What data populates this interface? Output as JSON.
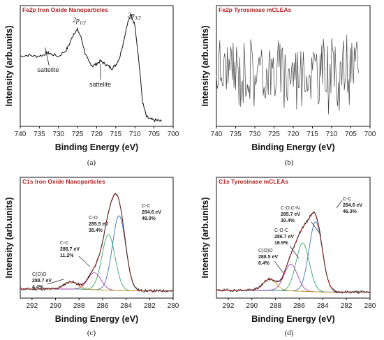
{
  "chart_data": [
    {
      "id": "a",
      "type": "line",
      "title": "Fe2p Iron Oxide Nanoparticles",
      "title_parts": [
        "Fe",
        "2p",
        " Iron Oxide Nanoparticles"
      ],
      "xlabel": "Binding Energy (eV)",
      "ylabel": "Intensity (arb.units)",
      "caption": "(a)",
      "xlim": [
        740,
        700
      ],
      "x_reversed": true,
      "x_ticks": [
        740,
        735,
        730,
        725,
        720,
        715,
        710,
        705,
        700
      ],
      "y_ticks_shown": false,
      "peak_labels": [
        {
          "main": "2p",
          "sub": "1/2",
          "x": 724.5
        },
        {
          "main": "2p",
          "sub": "3/2",
          "x": 711
        }
      ],
      "annotations": [
        {
          "text": "sattelite",
          "x": 733,
          "arrow_to": 733.5
        },
        {
          "text": "sattelite",
          "x": 719,
          "arrow_to": 719
        }
      ],
      "series": [
        {
          "color": "#111111",
          "x": [
            740,
            738,
            736,
            734,
            733,
            732,
            730,
            728,
            727,
            726,
            725,
            724,
            723,
            722,
            721,
            720,
            719,
            718,
            717,
            716,
            715,
            714,
            713,
            712,
            711,
            710,
            709,
            708,
            707,
            706,
            705,
            704,
            703
          ],
          "y": [
            0.58,
            0.59,
            0.58,
            0.59,
            0.61,
            0.6,
            0.58,
            0.63,
            0.69,
            0.77,
            0.8,
            0.73,
            0.6,
            0.53,
            0.5,
            0.52,
            0.54,
            0.52,
            0.5,
            0.48,
            0.51,
            0.57,
            0.7,
            0.85,
            0.92,
            0.84,
            0.55,
            0.2,
            0.08,
            0.06,
            0.05,
            0.05,
            0.04
          ]
        }
      ]
    },
    {
      "id": "b",
      "type": "line",
      "title": "Fe2p Tyrosinase mCLEAs",
      "title_parts": [
        "Fe",
        "2p",
        " Tyrosinase mCLEAs"
      ],
      "xlabel": "Binding Energy (eV)",
      "ylabel": "Intensity (arb.units)",
      "caption": "(b)",
      "xlim": [
        740,
        700
      ],
      "x_reversed": true,
      "x_ticks": [
        740,
        735,
        730,
        725,
        720,
        715,
        710,
        705,
        700
      ],
      "y_ticks_shown": false,
      "series": [
        {
          "color": "#444444",
          "style": "noise",
          "x_range": [
            740,
            703
          ],
          "n_points": 170,
          "baseline": 0.45,
          "amplitude": 0.3
        }
      ]
    },
    {
      "id": "c",
      "type": "line",
      "title": "C1s Iron Oxide Nanoparticles",
      "xlabel": "Binding Energy (eV)",
      "ylabel": "Intensity (arb.units)",
      "caption": "(c)",
      "xlim": [
        293,
        280
      ],
      "x_reversed": true,
      "x_ticks": [
        292,
        290,
        288,
        286,
        284,
        282,
        280
      ],
      "y_ticks_shown": false,
      "baseline": 0.06,
      "components": [
        {
          "label": "C-C",
          "energy_label": "284.6 eV",
          "percent": "49.0%",
          "center": 284.6,
          "height": 0.62,
          "width": 0.85,
          "color": "#3a75b5"
        },
        {
          "label": "C-O",
          "energy_label": "285.5 eV",
          "percent": "35.4%",
          "center": 285.5,
          "height": 0.46,
          "width": 0.85,
          "color": "#3aa66a"
        },
        {
          "label": "C-C",
          "energy_label": "286.7 eV",
          "percent": "11.2%",
          "center": 286.7,
          "height": 0.14,
          "width": 0.85,
          "color": "#a040b0"
        },
        {
          "label": "C(O)O",
          "energy_label": "288.7 eV",
          "percent": "4.4%",
          "center": 288.7,
          "height": 0.06,
          "width": 0.85,
          "color": "#c8a020"
        }
      ],
      "raw_color": "#222222",
      "envelope_color": "#d84040",
      "background_color": "#3a75b5"
    },
    {
      "id": "d",
      "type": "line",
      "title": "C1s Tyrosinase mCLEAs",
      "xlabel": "Binding Energy (eV)",
      "ylabel": "Intensity (arb.units)",
      "caption": "(d)",
      "xlim": [
        293,
        280
      ],
      "x_reversed": true,
      "x_ticks": [
        292,
        290,
        288,
        286,
        284,
        282,
        280
      ],
      "y_ticks_shown": false,
      "baseline": 0.05,
      "components": [
        {
          "label": "C-C",
          "energy_label": "284.6 eV",
          "percent": "46.3%",
          "center": 284.6,
          "height": 0.58,
          "width": 0.85,
          "color": "#3a75b5"
        },
        {
          "label": "C-O,C-N",
          "energy_label": "285.7 eV",
          "percent": "30.4%",
          "center": 285.7,
          "height": 0.4,
          "width": 0.85,
          "color": "#3aa66a"
        },
        {
          "label": "C-O-C",
          "energy_label": "286.7 eV",
          "percent": "16.9%",
          "center": 286.7,
          "height": 0.22,
          "width": 0.85,
          "color": "#a040b0"
        },
        {
          "label": "C(O)O",
          "energy_label": "288.5 eV",
          "percent": "6.4%",
          "center": 288.5,
          "height": 0.09,
          "width": 0.85,
          "color": "#c8a020"
        }
      ],
      "raw_color": "#222222",
      "envelope_color": "#d84040",
      "background_color": "#3a75b5"
    }
  ]
}
